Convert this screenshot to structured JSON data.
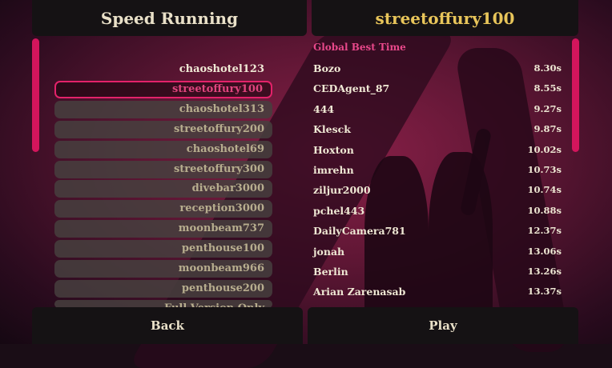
{
  "left_panel": {
    "title": "Speed Running",
    "levels": [
      {
        "label": "chaoshotel123",
        "state": "plain"
      },
      {
        "label": "streetoffury100",
        "state": "selected"
      },
      {
        "label": "chaoshotel313",
        "state": "normal"
      },
      {
        "label": "streetoffury200",
        "state": "normal"
      },
      {
        "label": "chaoshotel69",
        "state": "normal"
      },
      {
        "label": "streetoffury300",
        "state": "normal"
      },
      {
        "label": "divebar3000",
        "state": "normal"
      },
      {
        "label": "reception3000",
        "state": "normal"
      },
      {
        "label": "moonbeam737",
        "state": "normal"
      },
      {
        "label": "penthouse100",
        "state": "normal"
      },
      {
        "label": "moonbeam966",
        "state": "normal"
      },
      {
        "label": "penthouse200",
        "state": "normal"
      },
      {
        "label": "Full Version Only",
        "state": "cutoff"
      }
    ]
  },
  "right_panel": {
    "title": "streetoffury100",
    "leaderboard_heading": "Global Best Time",
    "entries": [
      {
        "name": "Bozo",
        "time": "8.30s"
      },
      {
        "name": "CEDAgent_87",
        "time": "8.55s"
      },
      {
        "name": "444",
        "time": "9.27s"
      },
      {
        "name": "Klesck",
        "time": "9.87s"
      },
      {
        "name": "Hoxton",
        "time": "10.02s"
      },
      {
        "name": "imrehn",
        "time": "10.73s"
      },
      {
        "name": "ziljur2000",
        "time": "10.74s"
      },
      {
        "name": "pchel443",
        "time": "10.88s"
      },
      {
        "name": "DailyCamera781",
        "time": "12.37s"
      },
      {
        "name": "jonah",
        "time": "13.06s"
      },
      {
        "name": "Berlin",
        "time": "13.26s"
      },
      {
        "name": "Arian Zarenasab",
        "time": "13.37s"
      }
    ]
  },
  "buttons": {
    "back": "Back",
    "play": "Play"
  },
  "colors": {
    "accent": "#d3155c",
    "title_gold": "#e8c55a",
    "heading_pink": "#e8488a"
  }
}
